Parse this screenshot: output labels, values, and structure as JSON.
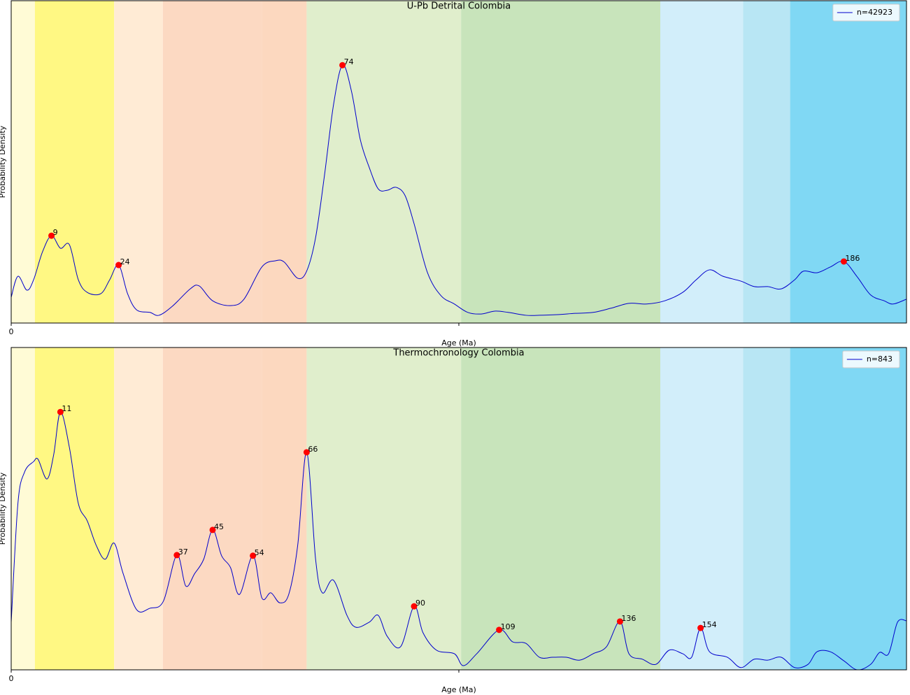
{
  "chart_data": [
    {
      "type": "line",
      "title": "U-Pb Detrital Colombia",
      "xlabel": "Age (Ma)",
      "ylabel": "Probability Density",
      "xlim": [
        0,
        200
      ],
      "xticks": [
        0,
        {
          "value": 100,
          "label": null
        }
      ],
      "ylim": [
        0,
        100
      ],
      "legend": "upper right",
      "bands": [
        {
          "start": 0,
          "end": 5.3,
          "color": "#fffbd6"
        },
        {
          "start": 5.3,
          "end": 23,
          "color": "#fff883"
        },
        {
          "start": 23,
          "end": 33.9,
          "color": "#ffebd5"
        },
        {
          "start": 33.9,
          "end": 56,
          "color": "#fcd9c2"
        },
        {
          "start": 56,
          "end": 66,
          "color": "#fcd8bf"
        },
        {
          "start": 66,
          "end": 100.5,
          "color": "#e0eecc"
        },
        {
          "start": 100.5,
          "end": 145,
          "color": "#c8e4bb"
        },
        {
          "start": 145,
          "end": 163.5,
          "color": "#d2eefa"
        },
        {
          "start": 163.5,
          "end": 174,
          "color": "#b8e6f4"
        },
        {
          "start": 174,
          "end": 201,
          "color": "#80d8f4"
        }
      ],
      "x": [
        0,
        1.5,
        3.5,
        5,
        7,
        9,
        11,
        13,
        15,
        17,
        20,
        22,
        24,
        26,
        28,
        31,
        33,
        36,
        40,
        42,
        45,
        49,
        52,
        56,
        59,
        61,
        64,
        66,
        68,
        70,
        72,
        74,
        76,
        78,
        80,
        82,
        84,
        86,
        88,
        90,
        93,
        96,
        99,
        102,
        105,
        108,
        111,
        115,
        118,
        122,
        126,
        130,
        134,
        138,
        142,
        146,
        150,
        153,
        156,
        159,
        163,
        166,
        169,
        172,
        175,
        177,
        180,
        183,
        186,
        189,
        192,
        195,
        197,
        200
      ],
      "series": [
        {
          "name": "n=42923",
          "color": "#0000cc",
          "values": [
            8.0,
            14.5,
            10.2,
            13.4,
            22.1,
            27.1,
            23.2,
            24.3,
            13.4,
            9.5,
            9.1,
            13.4,
            18.0,
            9.1,
            4.1,
            3.3,
            2.4,
            5.2,
            10.6,
            11.5,
            6.9,
            5.4,
            7.4,
            17.4,
            19.3,
            18.9,
            13.9,
            16.1,
            26.5,
            46.0,
            67.7,
            80.0,
            72.0,
            56.8,
            48.2,
            41.6,
            41.2,
            42.1,
            39.5,
            30.8,
            15.6,
            8.5,
            5.9,
            3.3,
            2.8,
            3.7,
            3.3,
            2.4,
            2.4,
            2.6,
            3.0,
            3.3,
            4.6,
            6.1,
            5.9,
            6.9,
            9.5,
            13.4,
            16.5,
            14.5,
            13.0,
            11.3,
            11.3,
            10.6,
            13.4,
            16.1,
            15.6,
            17.4,
            19.1,
            14.3,
            8.7,
            6.9,
            5.9,
            7.4
          ]
        }
      ],
      "peaks": {
        "color": "#ff0000",
        "x": [
          9,
          24,
          74,
          186
        ],
        "values": [
          27.1,
          18.0,
          80.0,
          19.1
        ]
      }
    },
    {
      "type": "line",
      "title": "Thermochronology Colombia",
      "xlabel": "Age (Ma)",
      "ylabel": "Probability Density",
      "xlim": [
        0,
        200
      ],
      "xticks": [
        0,
        {
          "value": 100,
          "label": null
        }
      ],
      "ylim": [
        0,
        100
      ],
      "legend": "upper right",
      "bands": [
        {
          "start": 0,
          "end": 5.3,
          "color": "#fffbd6"
        },
        {
          "start": 5.3,
          "end": 23,
          "color": "#fff883"
        },
        {
          "start": 23,
          "end": 33.9,
          "color": "#ffebd5"
        },
        {
          "start": 33.9,
          "end": 56,
          "color": "#fcd9c2"
        },
        {
          "start": 56,
          "end": 66,
          "color": "#fcd8bf"
        },
        {
          "start": 66,
          "end": 100.5,
          "color": "#e0eecc"
        },
        {
          "start": 100.5,
          "end": 145,
          "color": "#c8e4bb"
        },
        {
          "start": 145,
          "end": 163.5,
          "color": "#d2eefa"
        },
        {
          "start": 163.5,
          "end": 174,
          "color": "#b8e6f4"
        },
        {
          "start": 174,
          "end": 201,
          "color": "#80d8f4"
        }
      ],
      "x": [
        0,
        1.5,
        3,
        5,
        6,
        8,
        9.5,
        11,
        13,
        15,
        17,
        19,
        21,
        23,
        25,
        28,
        31,
        34,
        37,
        39,
        41,
        43,
        45,
        47,
        49,
        51,
        54,
        56,
        58,
        60,
        62,
        64,
        66,
        68,
        69.5,
        72,
        75,
        77,
        80,
        82,
        84,
        87,
        90,
        92,
        95,
        99,
        101,
        104,
        109,
        112,
        115,
        118,
        121,
        124,
        127,
        130,
        133,
        136,
        138,
        141,
        144,
        147,
        150,
        152,
        154,
        156,
        160,
        163,
        166,
        169,
        172,
        175,
        178,
        180,
        183,
        186,
        189,
        192,
        194,
        196,
        198,
        200
      ],
      "series": [
        {
          "name": "n=843",
          "color": "#0000cc",
          "values": [
            14.8,
            51.6,
            61.4,
            64.6,
            65.3,
            59.2,
            66.8,
            80.0,
            69.0,
            51.6,
            46.2,
            38.6,
            34.3,
            39.3,
            29.9,
            18.7,
            19.1,
            21.3,
            35.6,
            26.0,
            29.9,
            34.3,
            43.4,
            35.4,
            31.7,
            23.4,
            35.4,
            22.3,
            23.9,
            20.8,
            23.4,
            38.6,
            67.5,
            34.3,
            23.9,
            27.8,
            16.9,
            13.2,
            14.8,
            16.9,
            10.4,
            7.2,
            19.7,
            11.5,
            6.1,
            5.0,
            1.3,
            5.0,
            12.4,
            8.7,
            8.2,
            3.9,
            3.9,
            3.9,
            3.0,
            5.0,
            7.2,
            15.0,
            5.0,
            3.3,
            1.7,
            6.1,
            5.0,
            3.9,
            13.0,
            5.6,
            3.9,
            0.7,
            3.3,
            3.0,
            3.9,
            0.7,
            1.7,
            5.6,
            5.6,
            2.8,
            0,
            1.7,
            5.4,
            5.0,
            14.8,
            15.2
          ]
        }
      ],
      "peaks": {
        "color": "#ff0000",
        "x": [
          11,
          37,
          45,
          54,
          66,
          90,
          109,
          136,
          154
        ],
        "values": [
          80.0,
          35.6,
          43.4,
          35.4,
          67.5,
          19.7,
          12.4,
          15.0,
          13.0
        ]
      }
    }
  ]
}
